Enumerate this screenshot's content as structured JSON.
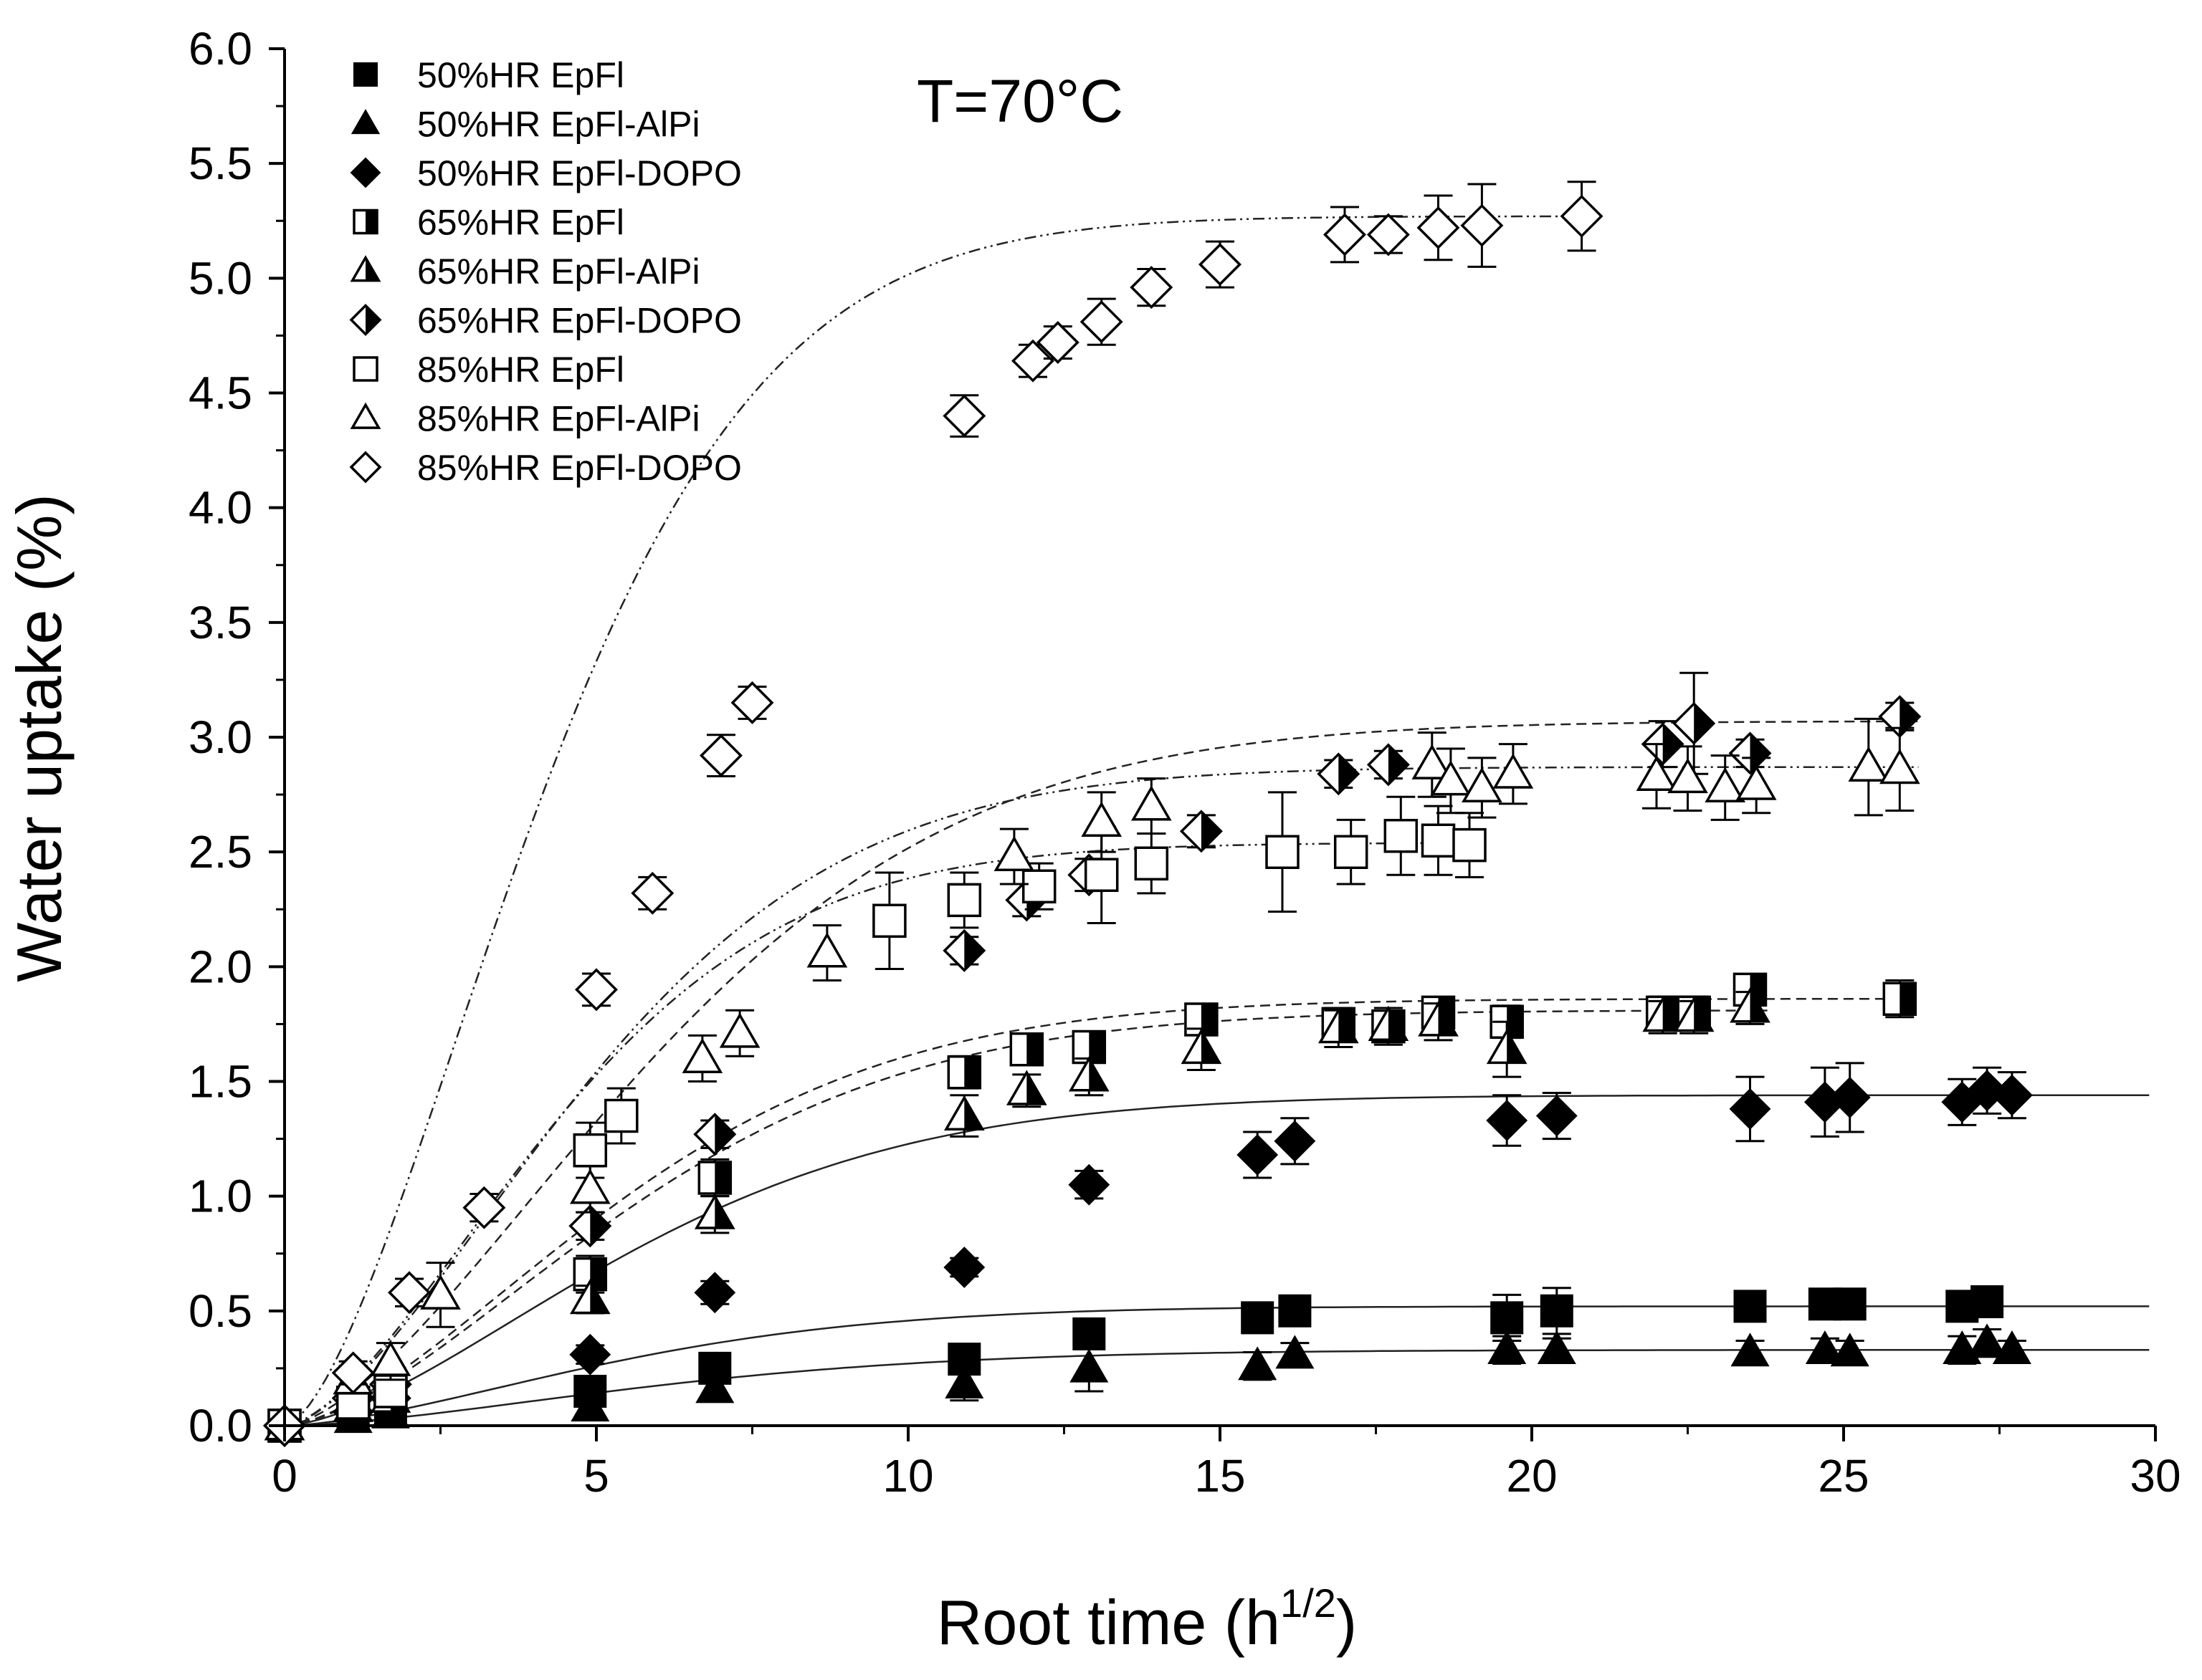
{
  "chart_data": {
    "type": "scatter",
    "title": "",
    "annotation": "T=70°C",
    "xlabel": "Root time (h",
    "xlabel_sup": "1/2",
    "xlabel_end": ")",
    "ylabel": "Water uptake (%)",
    "xlim": [
      0,
      30
    ],
    "ylim": [
      0,
      6
    ],
    "xticks": [
      0,
      5,
      10,
      15,
      20,
      25,
      30
    ],
    "yticks": [
      "0.0",
      "0.5",
      "1.0",
      "1.5",
      "2.0",
      "2.5",
      "3.0",
      "3.5",
      "4.0",
      "4.5",
      "5.0",
      "5.5",
      "6.0"
    ],
    "grid": false,
    "legend_position": "top-left",
    "series": [
      {
        "name": "50%HR EpFl",
        "marker": "square",
        "fill": "full",
        "x": [
          0,
          1.1,
          1.7,
          4.9,
          6.9,
          10.9,
          12.9,
          15.6,
          16.2,
          19.6,
          20.4,
          23.5,
          24.7,
          25.1,
          26.9,
          27.3
        ],
        "y": [
          0,
          0.05,
          0.08,
          0.15,
          0.25,
          0.29,
          0.4,
          0.47,
          0.5,
          0.47,
          0.5,
          0.52,
          0.53,
          0.53,
          0.52,
          0.54
        ],
        "err": [
          0,
          0.03,
          0.03,
          0.05,
          0.05,
          0.05,
          0.05,
          0.04,
          0.04,
          0.1,
          0.1,
          0.04,
          0.03,
          0.03,
          0.04,
          0.04
        ],
        "fit": {
          "amp": 0.52,
          "k": 0.16,
          "style": "solid"
        }
      },
      {
        "name": "50%HR EpFl-AlPi",
        "marker": "triangle",
        "fill": "full",
        "x": [
          0,
          1.1,
          1.7,
          4.9,
          6.9,
          10.9,
          12.9,
          15.6,
          16.2,
          19.6,
          20.4,
          23.5,
          24.7,
          25.1,
          26.9,
          27.3,
          27.7
        ],
        "y": [
          0,
          0.03,
          0.05,
          0.08,
          0.16,
          0.18,
          0.25,
          0.26,
          0.31,
          0.33,
          0.33,
          0.32,
          0.33,
          0.32,
          0.33,
          0.36,
          0.33
        ],
        "err": [
          0,
          0.03,
          0.03,
          0.04,
          0.05,
          0.07,
          0.1,
          0.06,
          0.05,
          0.06,
          0.05,
          0.05,
          0.05,
          0.05,
          0.06,
          0.06,
          0.04
        ],
        "fit": {
          "amp": 0.33,
          "k": 0.14,
          "style": "solid"
        }
      },
      {
        "name": "50%HR EpFl-DOPO",
        "marker": "diamond",
        "fill": "full",
        "x": [
          0,
          1.1,
          1.7,
          4.9,
          6.9,
          10.9,
          12.9,
          15.6,
          16.2,
          19.6,
          20.4,
          23.5,
          24.7,
          25.1,
          26.9,
          27.3,
          27.7
        ],
        "y": [
          0,
          0.06,
          0.12,
          0.31,
          0.58,
          0.69,
          1.05,
          1.18,
          1.24,
          1.33,
          1.35,
          1.38,
          1.41,
          1.43,
          1.41,
          1.46,
          1.44
        ],
        "err": [
          0,
          0.03,
          0.04,
          0.04,
          0.05,
          0.04,
          0.06,
          0.1,
          0.1,
          0.11,
          0.1,
          0.14,
          0.15,
          0.15,
          0.1,
          0.1,
          0.1
        ],
        "fit": {
          "amp": 1.44,
          "k": 0.15,
          "style": "solid"
        }
      },
      {
        "name": "65%HR EpFl",
        "marker": "square",
        "fill": "half",
        "x": [
          0,
          1.1,
          1.7,
          4.9,
          6.9,
          10.9,
          11.9,
          12.9,
          14.7,
          16.9,
          17.7,
          18.5,
          19.6,
          22.1,
          22.6,
          23.5,
          25.9
        ],
        "y": [
          0,
          0.1,
          0.15,
          0.66,
          1.08,
          1.54,
          1.64,
          1.65,
          1.77,
          1.75,
          1.74,
          1.8,
          1.76,
          1.8,
          1.8,
          1.9,
          1.86
        ],
        "err": [
          0,
          0.04,
          0.05,
          0.08,
          0.08,
          0.07,
          0.06,
          0.06,
          0.06,
          0.07,
          0.06,
          0.06,
          0.07,
          0.07,
          0.07,
          0.06,
          0.08
        ],
        "fit": {
          "amp": 1.86,
          "k": 0.155,
          "style": "dashed"
        }
      },
      {
        "name": "65%HR EpFl-AlPi",
        "marker": "triangle",
        "fill": "half",
        "x": [
          0,
          1.1,
          1.7,
          4.9,
          6.9,
          10.9,
          11.9,
          12.9,
          14.7,
          16.9,
          17.7,
          18.5,
          19.6,
          22.1,
          22.6,
          23.5
        ],
        "y": [
          0,
          0.08,
          0.12,
          0.55,
          0.92,
          1.35,
          1.46,
          1.52,
          1.64,
          1.73,
          1.74,
          1.76,
          1.64,
          1.78,
          1.78,
          1.82
        ],
        "err": [
          0,
          0.04,
          0.05,
          0.06,
          0.08,
          0.09,
          0.07,
          0.08,
          0.09,
          0.08,
          0.08,
          0.08,
          0.12,
          0.07,
          0.07,
          0.07
        ],
        "fit": {
          "amp": 1.81,
          "k": 0.15,
          "style": "dashed"
        }
      },
      {
        "name": "65%HR EpFl-DOPO",
        "marker": "diamond",
        "fill": "half",
        "x": [
          0,
          1.1,
          1.7,
          4.9,
          6.9,
          10.9,
          11.9,
          12.9,
          14.7,
          16.9,
          17.7,
          22.1,
          22.6,
          23.5,
          25.9
        ],
        "y": [
          0,
          0.12,
          0.18,
          0.87,
          1.27,
          2.07,
          2.29,
          2.4,
          2.59,
          2.84,
          2.88,
          2.97,
          3.06,
          2.93,
          3.09
        ],
        "err": [
          0,
          0.04,
          0.05,
          0.06,
          0.06,
          0.06,
          0.07,
          0.07,
          0.07,
          0.06,
          0.06,
          0.1,
          0.22,
          0.06,
          0.06
        ],
        "fit": {
          "amp": 3.07,
          "k": 0.14,
          "style": "dashed"
        }
      },
      {
        "name": "85%HR EpFl",
        "marker": "square",
        "fill": "empty",
        "x": [
          0,
          1.1,
          1.7,
          4.9,
          5.4,
          9.7,
          10.9,
          12.1,
          13.1,
          13.9,
          16.0,
          17.1,
          17.9,
          18.5,
          19.0
        ],
        "y": [
          0,
          0.1,
          0.15,
          1.2,
          1.35,
          2.2,
          2.29,
          2.35,
          2.4,
          2.45,
          2.5,
          2.5,
          2.57,
          2.55,
          2.53
        ],
        "err": [
          0,
          0.05,
          0.05,
          0.12,
          0.12,
          0.21,
          0.12,
          0.1,
          0.21,
          0.13,
          0.26,
          0.14,
          0.17,
          0.15,
          0.14
        ],
        "fit": {
          "amp": 2.54,
          "k": 0.19,
          "style": "dashdot"
        }
      },
      {
        "name": "85%HR EpFl-AlPi",
        "marker": "triangle",
        "fill": "empty",
        "x": [
          0,
          1.1,
          1.7,
          2.5,
          4.9,
          6.7,
          7.3,
          8.7,
          11.7,
          13.1,
          13.9,
          18.4,
          18.7,
          19.2,
          19.7,
          22.0,
          22.5,
          23.1,
          23.6,
          25.4,
          25.9
        ],
        "y": [
          0,
          0.2,
          0.28,
          0.57,
          1.03,
          1.6,
          1.71,
          2.06,
          2.48,
          2.63,
          2.7,
          2.88,
          2.81,
          2.78,
          2.84,
          2.83,
          2.82,
          2.78,
          2.79,
          2.87,
          2.86
        ],
        "err": [
          0,
          0.06,
          0.08,
          0.14,
          0.1,
          0.1,
          0.1,
          0.12,
          0.12,
          0.13,
          0.12,
          0.14,
          0.14,
          0.13,
          0.13,
          0.14,
          0.14,
          0.14,
          0.12,
          0.21,
          0.18
        ],
        "fit": {
          "amp": 2.87,
          "k": 0.17,
          "style": "dashdot"
        }
      },
      {
        "name": "85%HR EpFl-DOPO",
        "marker": "diamond",
        "fill": "empty",
        "x": [
          0,
          1.1,
          2.0,
          3.2,
          5.0,
          5.9,
          7.0,
          7.5,
          10.9,
          12.0,
          12.4,
          13.1,
          13.9,
          15.0,
          17.0,
          17.7,
          18.5,
          19.2,
          20.8
        ],
        "y": [
          0,
          0.23,
          0.58,
          0.95,
          1.9,
          2.32,
          2.92,
          3.15,
          4.4,
          4.64,
          4.72,
          4.81,
          4.96,
          5.06,
          5.19,
          5.19,
          5.22,
          5.23,
          5.27
        ],
        "err": [
          0,
          0.05,
          0.06,
          0.06,
          0.07,
          0.07,
          0.09,
          0.07,
          0.09,
          0.07,
          0.07,
          0.1,
          0.08,
          0.1,
          0.12,
          0.08,
          0.14,
          0.18,
          0.15
        ],
        "fit": {
          "amp": 5.27,
          "k": 0.2,
          "style": "dashdot"
        }
      }
    ]
  }
}
